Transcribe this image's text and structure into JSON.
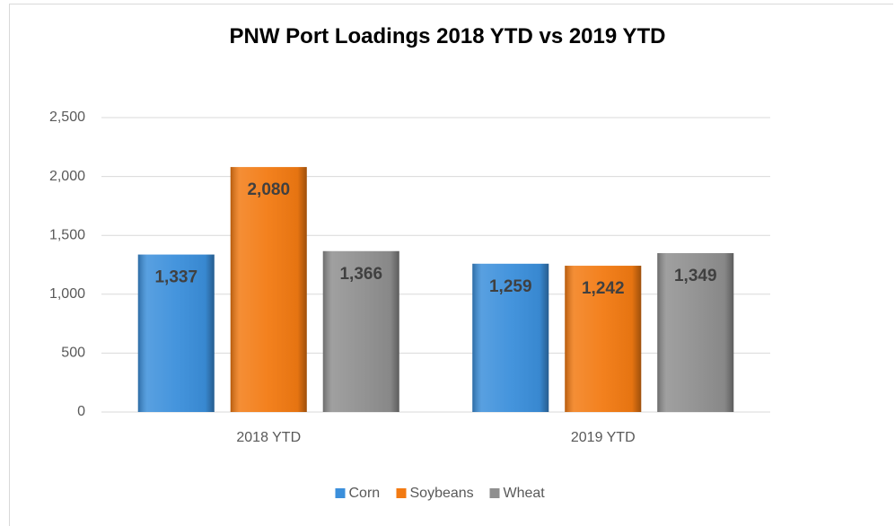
{
  "chart_data": {
    "type": "bar",
    "title": "PNW Port Loadings 2018 YTD vs 2019 YTD",
    "categories": [
      "2018 YTD",
      "2019 YTD"
    ],
    "series": [
      {
        "name": "Corn",
        "color": "#3b8fdb",
        "values": [
          1337,
          1259
        ],
        "value_labels": [
          "1,337",
          "1,259"
        ]
      },
      {
        "name": "Soybeans",
        "color": "#f27a12",
        "values": [
          2080,
          1242
        ],
        "value_labels": [
          "2,080",
          "1,242"
        ]
      },
      {
        "name": "Wheat",
        "color": "#8f8f8f",
        "values": [
          1366,
          1349
        ],
        "value_labels": [
          "1,366",
          "1,349"
        ]
      }
    ],
    "ylim": [
      0,
      2500
    ],
    "yticks": [
      0,
      500,
      {
        "value": 1000,
        "label": "1,000"
      },
      {
        "value": 1500,
        "label": "1,500"
      },
      {
        "value": 2000,
        "label": "2,000"
      },
      {
        "value": 2500,
        "label": "2,500"
      }
    ],
    "grid": true,
    "legend": "bottom"
  }
}
